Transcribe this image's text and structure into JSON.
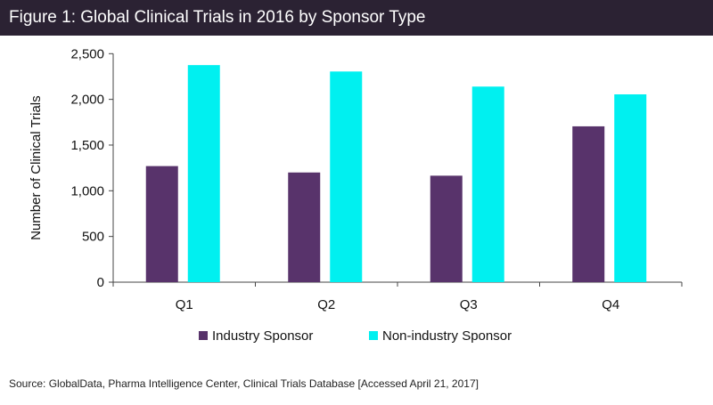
{
  "title": "Figure 1: Global Clinical Trials in 2016 by Sponsor Type",
  "source": "Source: GlobalData, Pharma Intelligence Center, Clinical Trials Database  [Accessed April 21, 2017]",
  "chart_data": {
    "type": "bar",
    "title": "Figure 1: Global Clinical Trials in 2016 by Sponsor Type",
    "xlabel": "",
    "ylabel": "Number of Clinical Trials",
    "categories": [
      "Q1",
      "Q2",
      "Q3",
      "Q4"
    ],
    "ylim": [
      0,
      2500
    ],
    "yticks": [
      0,
      500,
      1000,
      1500,
      2000,
      2500
    ],
    "ytick_labels": [
      "0",
      "500",
      "1,000",
      "1,500",
      "2,000",
      "2,500"
    ],
    "grid": false,
    "legend_position": "bottom",
    "series": [
      {
        "name": "Industry Sponsor",
        "color": "#58336b",
        "values": [
          1270,
          1200,
          1165,
          1705
        ]
      },
      {
        "name": "Non-industry Sponsor",
        "color": "#00f0f0",
        "values": [
          2375,
          2305,
          2140,
          2055
        ]
      }
    ]
  }
}
